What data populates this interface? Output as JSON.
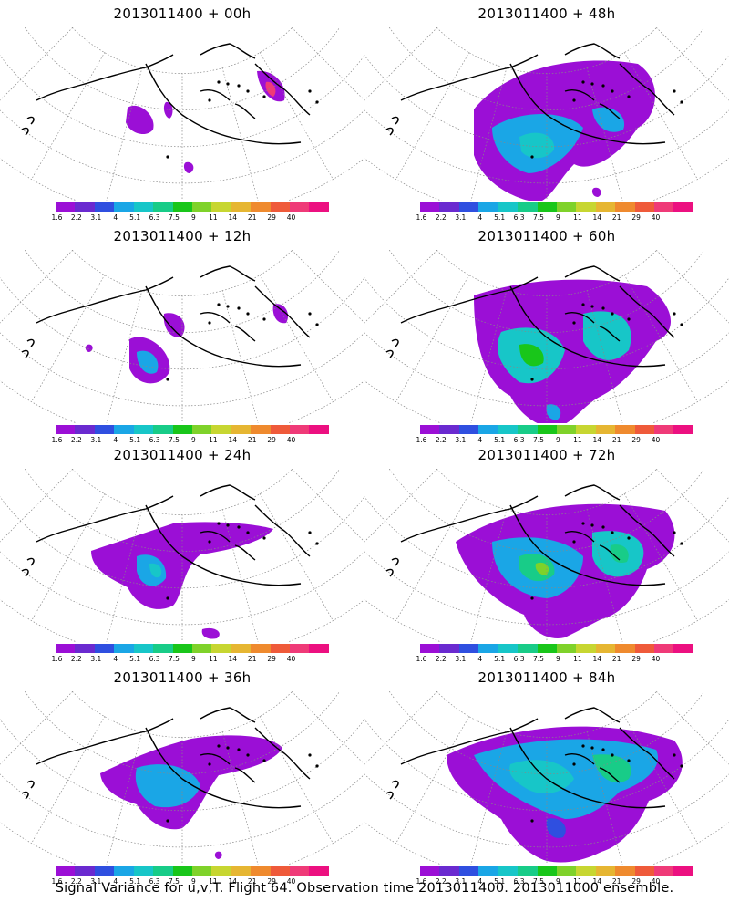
{
  "panels": [
    {
      "title": "2013011400 + 00h"
    },
    {
      "title": "2013011400 + 48h"
    },
    {
      "title": "2013011400 + 12h"
    },
    {
      "title": "2013011400 + 60h"
    },
    {
      "title": "2013011400 + 24h"
    },
    {
      "title": "2013011400 + 72h"
    },
    {
      "title": "2013011400 + 36h"
    },
    {
      "title": "2013011400 + 84h"
    }
  ],
  "colorbar": {
    "labels": [
      "1.6",
      "2.2",
      "3.1",
      "4",
      "5.1",
      "6.3",
      "7.5",
      "9",
      "11",
      "14",
      "21",
      "29",
      "40"
    ],
    "colors": [
      "#9b0fd6",
      "#6a2ad0",
      "#2f4fe0",
      "#1aa6e6",
      "#17c6c8",
      "#18cc88",
      "#19c61a",
      "#7fd22a",
      "#c7d631",
      "#e6b632",
      "#ef8a2e",
      "#ef5a3a",
      "#ef3a78",
      "#ec1080"
    ]
  },
  "caption": "Signal Variance for u,v,T. Flight 64. Observation time 2013011400. 2013011000 ensemble."
}
